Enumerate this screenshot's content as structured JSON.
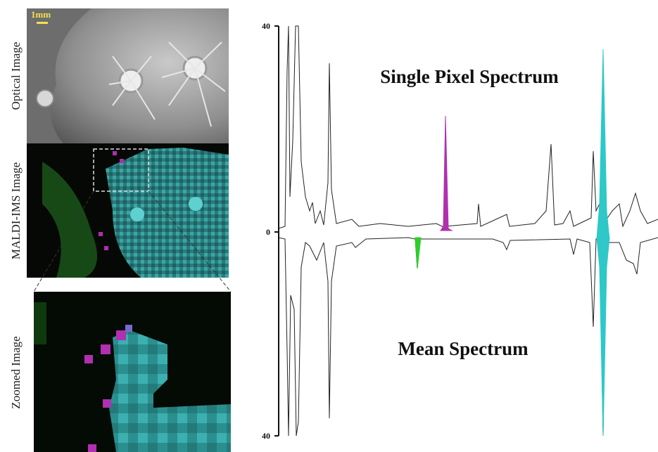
{
  "panels": {
    "optical": {
      "label": "Optical Image",
      "scale_bar": "1mm"
    },
    "maldi": {
      "label": "MALDI-IMS Image"
    },
    "zoomed": {
      "label": "Zoomed Image"
    }
  },
  "spectrum": {
    "top_title": "Single Pixel Spectrum",
    "bottom_title": "Mean Spectrum",
    "ticks": [
      40,
      0,
      40
    ]
  }
}
